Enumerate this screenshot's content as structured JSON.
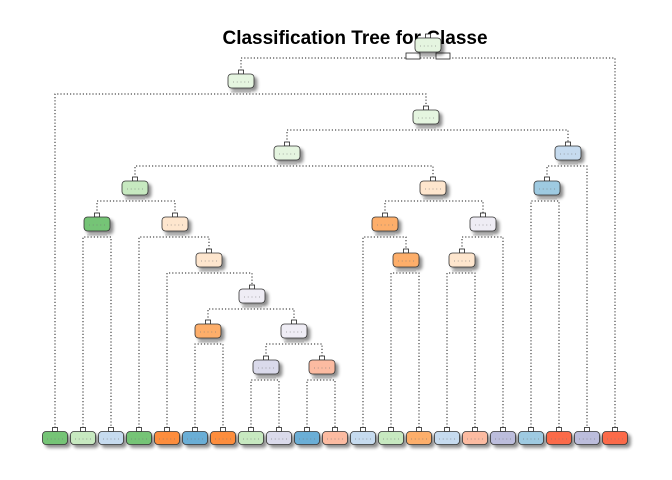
{
  "title": "Classification Tree for Classe",
  "colors": {
    "green_light": "#e5f5e0",
    "green_mid": "#c7e9c0",
    "green_dark": "#74c476",
    "orange_light": "#fee6ce",
    "orange_mid": "#fdae6b",
    "orange_dark": "#fd8d3c",
    "blue_light": "#c6dbef",
    "blue_mid": "#9ecae1",
    "blue_dark": "#6baed6",
    "purple_light": "#efedf5",
    "purple_mid": "#dadaeb",
    "purple_dark": "#bcbddc",
    "red_light": "#fcbba1",
    "red_dark": "#fb6a4a"
  },
  "internal_nodes": [
    {
      "id": "n1",
      "color": "green_light"
    },
    {
      "id": "n2",
      "color": "green_light"
    },
    {
      "id": "n3",
      "color": "green_light"
    },
    {
      "id": "n4",
      "color": "green_light"
    },
    {
      "id": "n5",
      "color": "blue_light"
    },
    {
      "id": "n6",
      "color": "green_mid"
    },
    {
      "id": "n7",
      "color": "orange_light"
    },
    {
      "id": "n8",
      "color": "blue_mid"
    },
    {
      "id": "n9",
      "color": "green_dark"
    },
    {
      "id": "n10",
      "color": "orange_light"
    },
    {
      "id": "n11",
      "color": "orange_mid"
    },
    {
      "id": "n12",
      "color": "purple_light"
    },
    {
      "id": "n13",
      "color": "orange_light"
    },
    {
      "id": "n14",
      "color": "orange_mid"
    },
    {
      "id": "n15",
      "color": "orange_light"
    },
    {
      "id": "n16",
      "color": "purple_light"
    },
    {
      "id": "n17",
      "color": "orange_mid"
    },
    {
      "id": "n18",
      "color": "purple_light"
    },
    {
      "id": "n19",
      "color": "purple_mid"
    },
    {
      "id": "n20",
      "color": "red_light"
    }
  ],
  "leaves": [
    {
      "color": "green_dark"
    },
    {
      "color": "green_mid"
    },
    {
      "color": "blue_light"
    },
    {
      "color": "green_dark"
    },
    {
      "color": "orange_dark"
    },
    {
      "color": "blue_dark"
    },
    {
      "color": "orange_dark"
    },
    {
      "color": "green_mid"
    },
    {
      "color": "purple_mid"
    },
    {
      "color": "blue_dark"
    },
    {
      "color": "red_light"
    },
    {
      "color": "blue_light"
    },
    {
      "color": "green_mid"
    },
    {
      "color": "orange_mid"
    },
    {
      "color": "blue_light"
    },
    {
      "color": "red_light"
    },
    {
      "color": "purple_dark"
    },
    {
      "color": "blue_mid"
    },
    {
      "color": "red_dark"
    },
    {
      "color": "purple_dark"
    },
    {
      "color": "red_dark"
    }
  ]
}
